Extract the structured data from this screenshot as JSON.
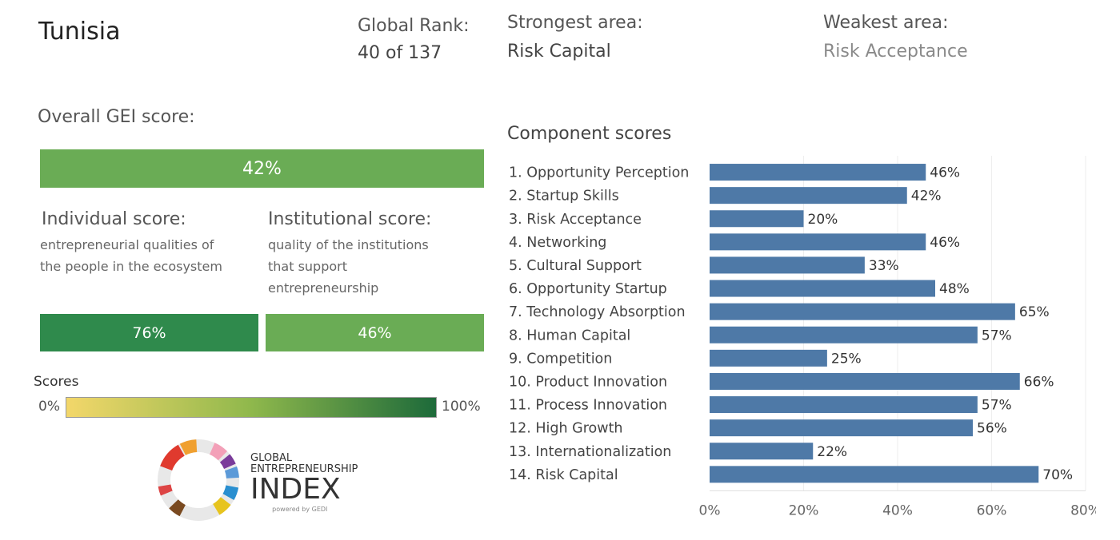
{
  "header": {
    "country": "Tunisia",
    "rank_label": "Global Rank:",
    "rank_value": "40 of 137",
    "strongest_label": "Strongest area:",
    "strongest_value": "Risk Capital",
    "weakest_label": "Weakest area:",
    "weakest_value": "Risk Acceptance"
  },
  "overall": {
    "label": "Overall GEI score:",
    "value": "42%",
    "fraction": 0.42,
    "color": "#6aac55"
  },
  "individual": {
    "title": "Individual score:",
    "desc_lines": [
      "entrepreneurial qualities of",
      "the people in the ecosystem"
    ],
    "value": "76%",
    "color": "#2f8a4c"
  },
  "institutional": {
    "title": "Institutional score:",
    "desc_lines": [
      "quality of the institutions",
      "that support",
      "entrepreneurship"
    ],
    "value": "46%",
    "color": "#6aac55"
  },
  "legend": {
    "title": "Scores",
    "min_label": "0%",
    "max_label": "100%",
    "gradient_from": "#f3d76a",
    "gradient_to": "#1d6a3a"
  },
  "logo": {
    "line1": "GLOBAL",
    "line2": "ENTREPRENEURSHIP",
    "line3": "INDEX",
    "line4": "powered by GEDI"
  },
  "chart_data": {
    "type": "bar",
    "orientation": "horizontal",
    "title": "Component scores",
    "bar_color": "#4e79a7",
    "categories": [
      "1. Opportunity Perception",
      "2. Startup Skills",
      "3. Risk Acceptance",
      "4. Networking",
      "5. Cultural Support",
      "6. Opportunity Startup",
      "7. Technology Absorption",
      "8. Human Capital",
      "9. Competition",
      "10. Product Innovation",
      "11. Process Innovation",
      "12. High Growth",
      "13. Internationalization",
      "14. Risk Capital"
    ],
    "values": [
      46,
      42,
      20,
      46,
      33,
      48,
      65,
      57,
      25,
      66,
      57,
      56,
      22,
      70
    ],
    "value_labels": [
      "46%",
      "42%",
      "20%",
      "46%",
      "33%",
      "48%",
      "65%",
      "57%",
      "25%",
      "66%",
      "57%",
      "56%",
      "22%",
      "70%"
    ],
    "xlim": [
      0,
      80
    ],
    "xticks": [
      0,
      20,
      40,
      60,
      80
    ],
    "xtick_labels": [
      "0%",
      "20%",
      "40%",
      "60%",
      "80%"
    ],
    "grid": true
  }
}
